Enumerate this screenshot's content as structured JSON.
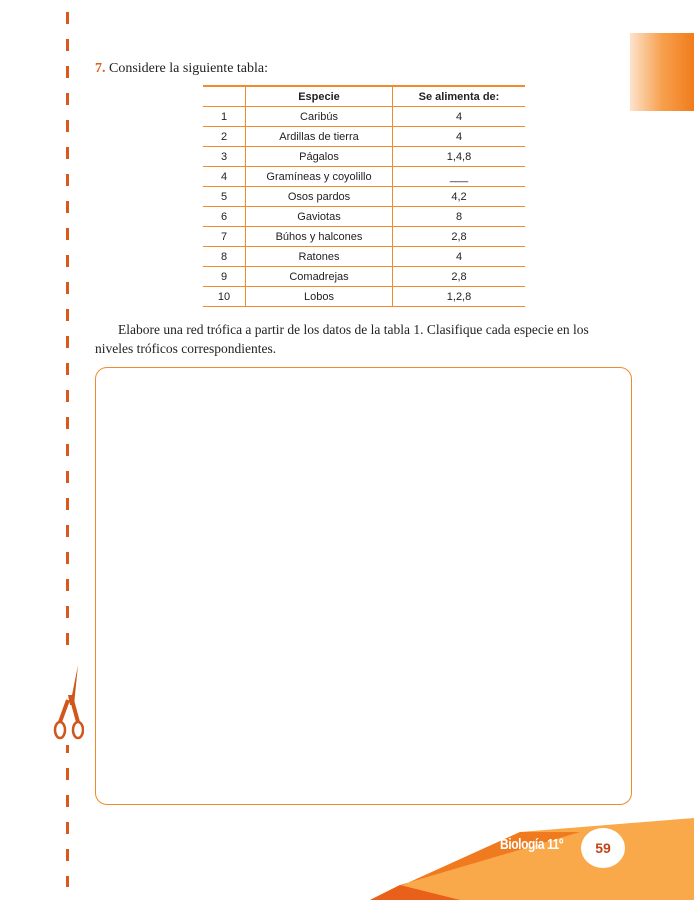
{
  "question": {
    "number": "7.",
    "text": "Considere la siguiente tabla:"
  },
  "table": {
    "headers": [
      "",
      "Especie",
      "Se alimenta de:"
    ],
    "rows": [
      [
        "1",
        "Caribús",
        "4"
      ],
      [
        "2",
        "Ardillas de tierra",
        "4"
      ],
      [
        "3",
        "Págalos",
        "1,4,8"
      ],
      [
        "4",
        "Gramíneas y coyolillo",
        "___"
      ],
      [
        "5",
        "Osos pardos",
        "4,2"
      ],
      [
        "6",
        "Gaviotas",
        "8"
      ],
      [
        "7",
        "Búhos y halcones",
        "2,8"
      ],
      [
        "8",
        "Ratones",
        "4"
      ],
      [
        "9",
        "Comadrejas",
        "2,8"
      ],
      [
        "10",
        "Lobos",
        "1,2,8"
      ]
    ]
  },
  "instruction": "Elabore una red trófica a partir de los datos de la tabla 1. Clasifique cada especie en los niveles tróficos correspondientes.",
  "footer": {
    "book": "Biología 11º",
    "page": "59"
  },
  "colors": {
    "accent": "#f08a2a",
    "dark_orange": "#e0601a",
    "light_orange": "#f9a84a"
  },
  "icons": [
    "scissors-icon"
  ]
}
